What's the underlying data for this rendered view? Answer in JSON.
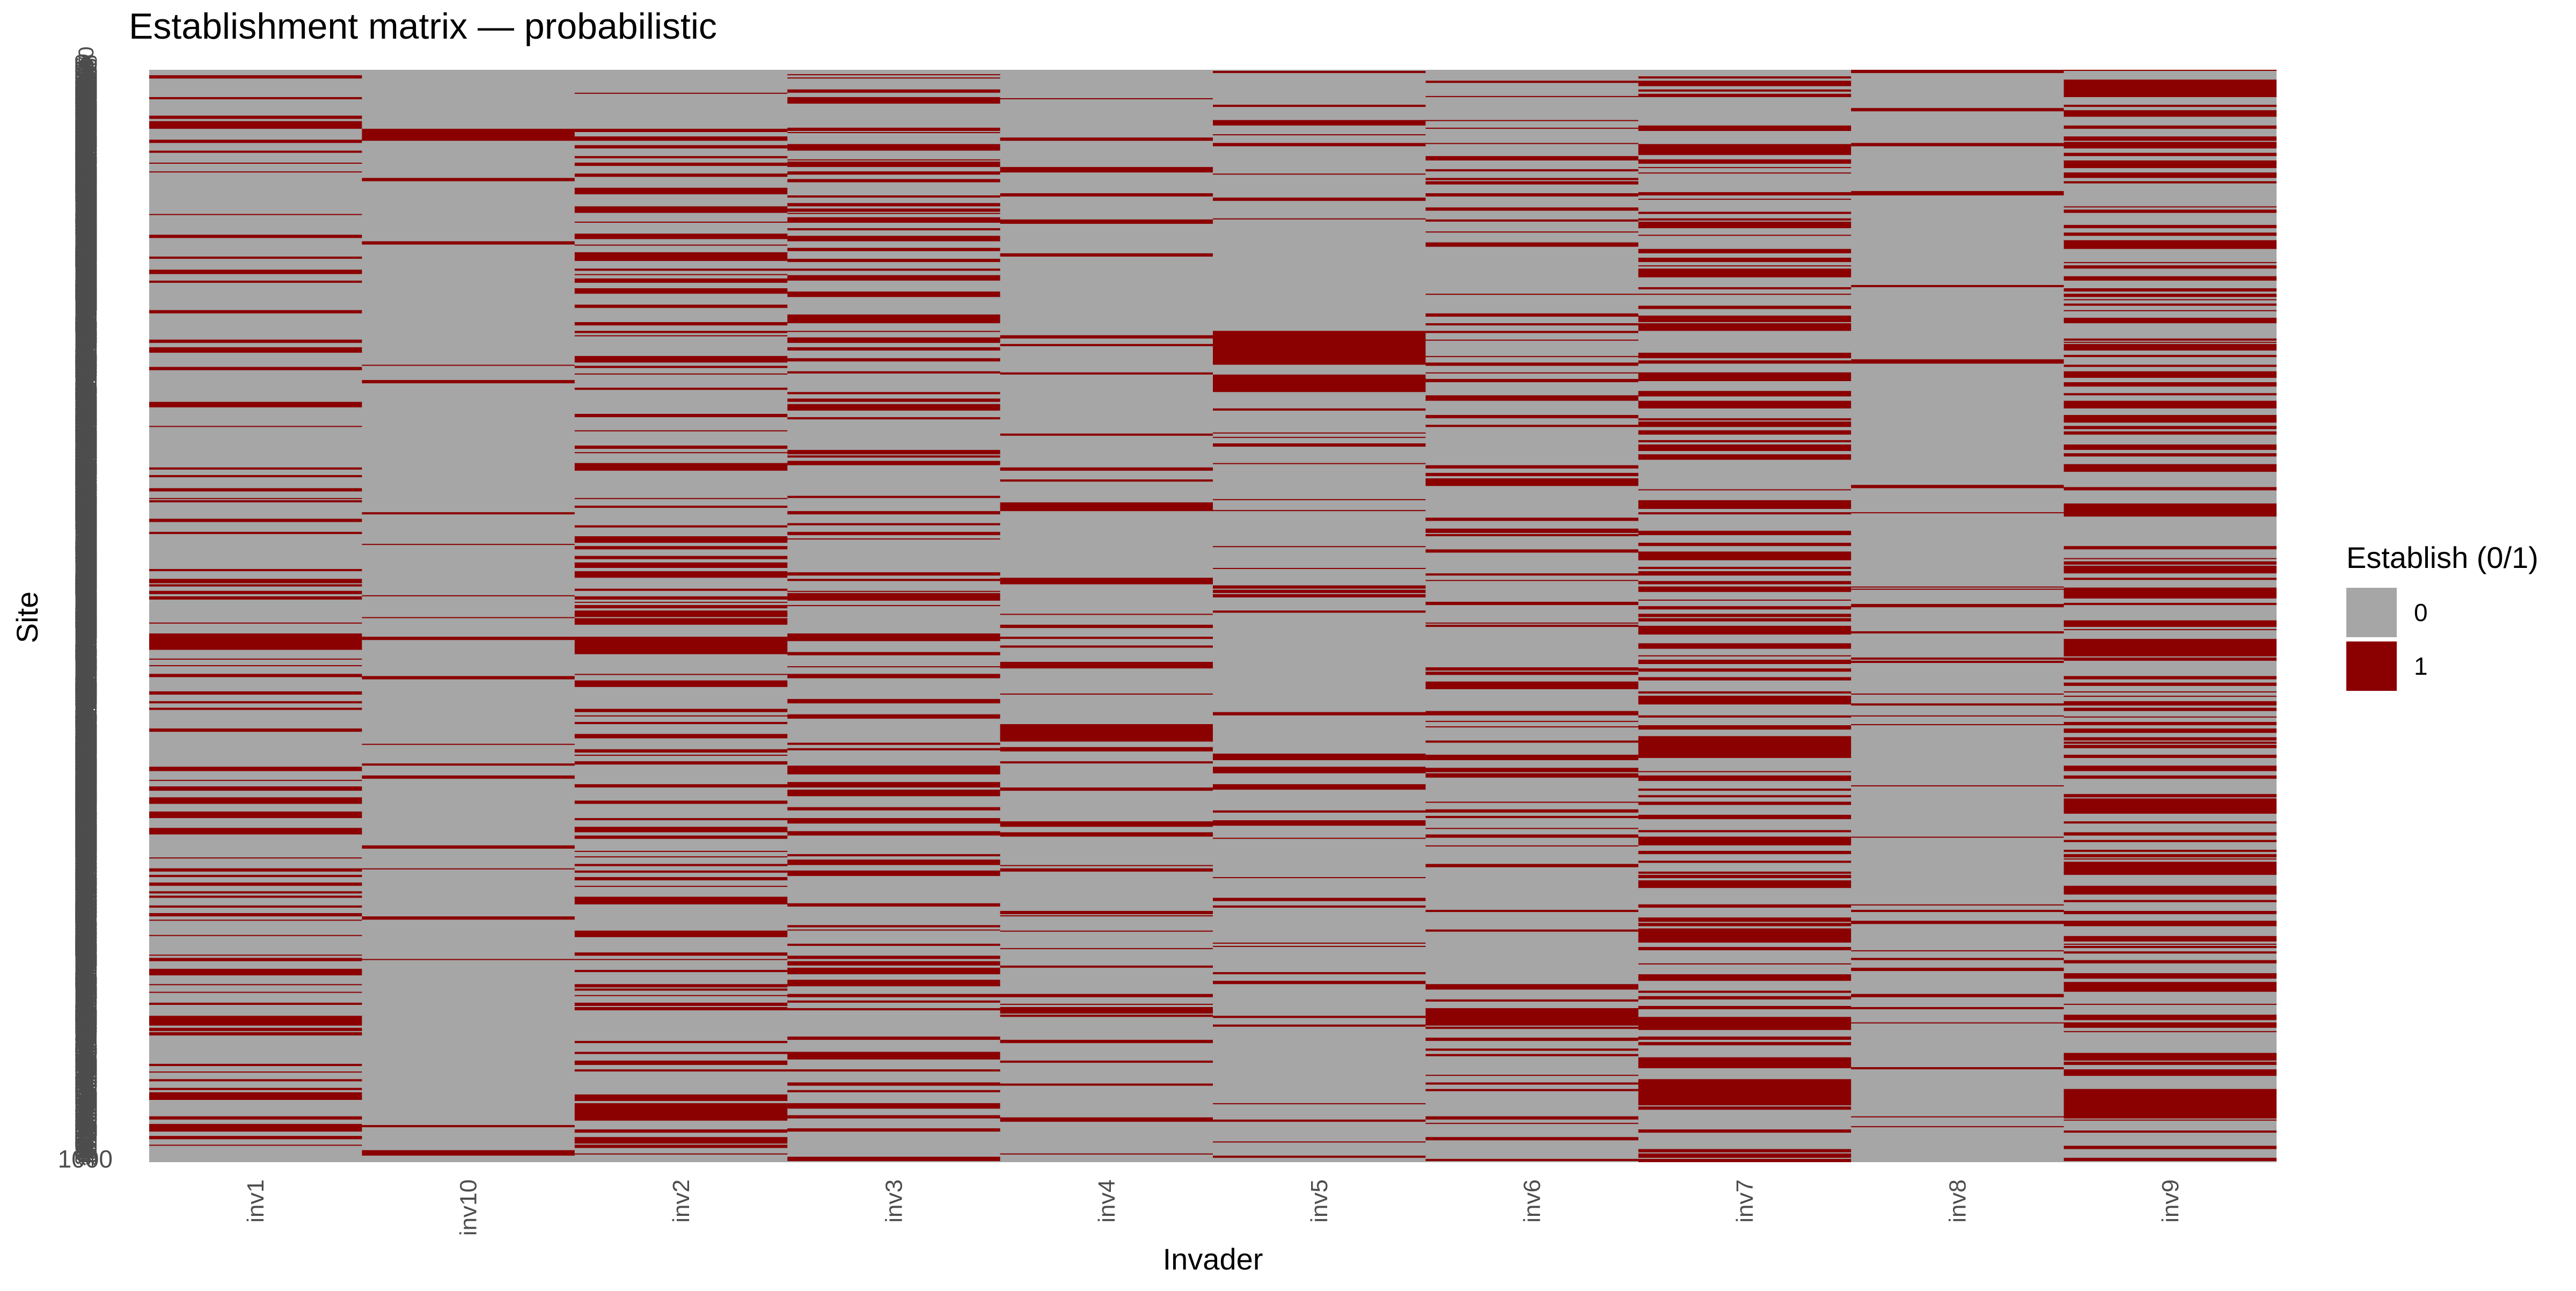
{
  "chart_data": {
    "type": "heatmap",
    "title": "Establishment matrix — probabilistic",
    "xlabel": "Invader",
    "ylabel": "Site",
    "x_categories": [
      "inv1",
      "inv10",
      "inv2",
      "inv3",
      "inv4",
      "inv5",
      "inv6",
      "inv7",
      "inv8",
      "inv9"
    ],
    "n_sites": 1000,
    "y_range": [
      1,
      1000
    ],
    "y_tick_labels_legible": [
      "1000"
    ],
    "legend": {
      "title": "Establish (0/1)",
      "position": "right",
      "entries": [
        {
          "label": "0",
          "color": "#a6a6a6"
        },
        {
          "label": "1",
          "color": "#8b0000"
        }
      ]
    },
    "colors": {
      "0": "#a6a6a6",
      "1": "#8b0000"
    },
    "establish_fraction_by_invader": {
      "inv1": 0.3,
      "inv10": 0.12,
      "inv2": 0.35,
      "inv3": 0.38,
      "inv4": 0.25,
      "inv5": 0.24,
      "inv6": 0.3,
      "inv7": 0.45,
      "inv8": 0.18,
      "inv9": 0.45
    },
    "dense_blocks": [
      {
        "invader": "inv5",
        "sites": [
          240,
          270
        ]
      },
      {
        "invader": "inv5",
        "sites": [
          280,
          295
        ]
      },
      {
        "invader": "inv6",
        "sites": [
          860,
          875
        ]
      },
      {
        "invader": "inv10",
        "sites": [
          55,
          65
        ]
      },
      {
        "invader": "inv2",
        "sites": [
          520,
          535
        ]
      },
      {
        "invader": "inv4",
        "sites": [
          600,
          615
        ]
      },
      {
        "invader": "inv9",
        "sites": [
          940,
          960
        ]
      },
      {
        "invader": "inv7",
        "sites": [
          925,
          945
        ]
      }
    ],
    "grid": false
  }
}
